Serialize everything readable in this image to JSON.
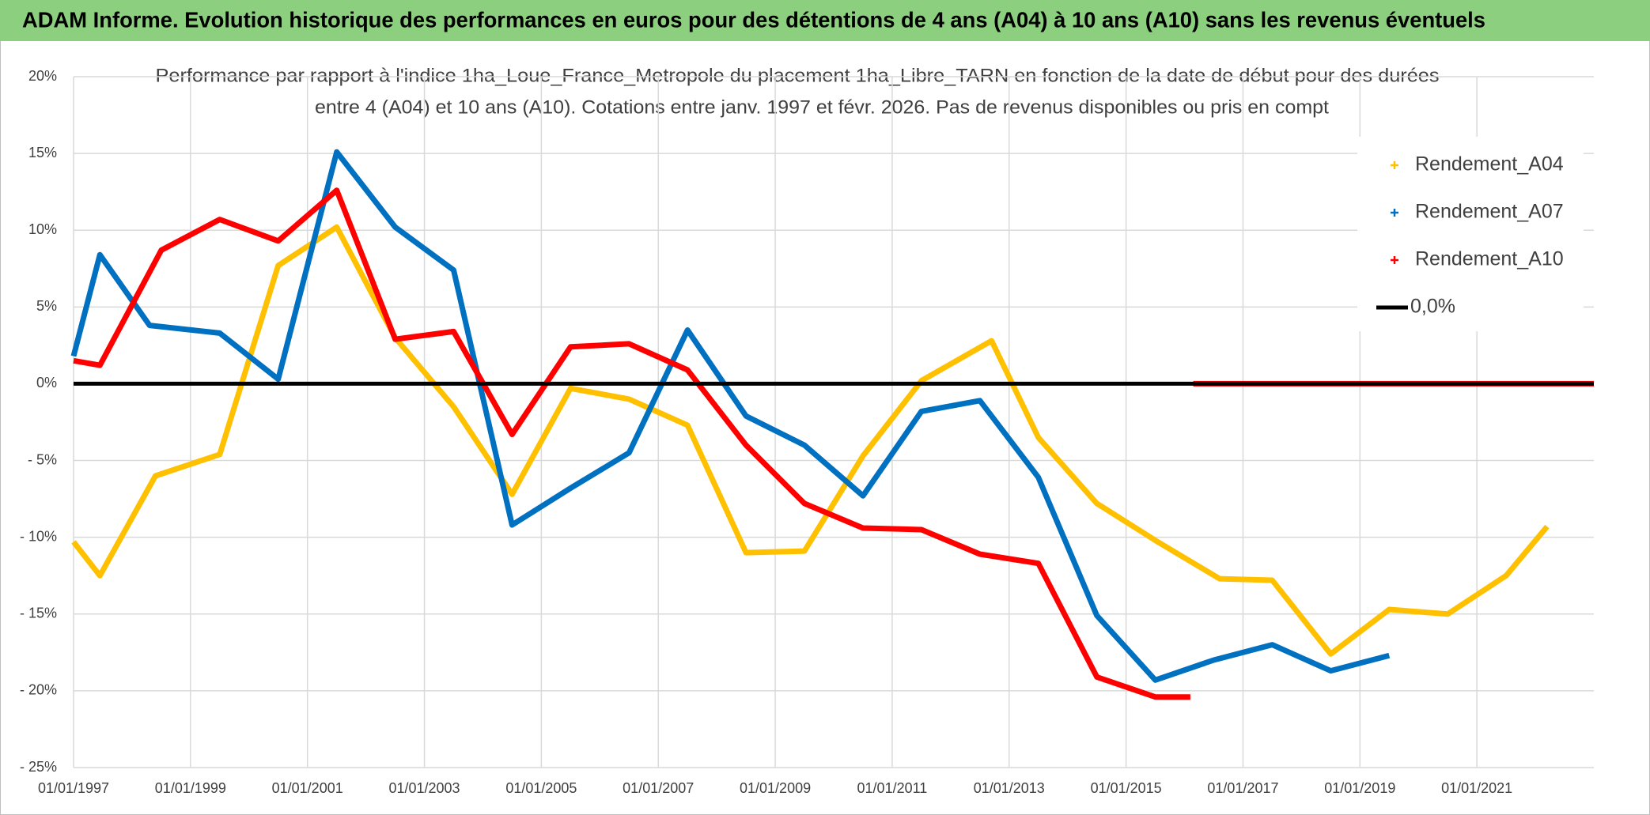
{
  "banner": {
    "title": "ADAM Informe. Evolution historique des performances en euros pour des détentions de 4 ans (A04) à 10 ans (A10) sans les revenus éventuels"
  },
  "chart_data": {
    "type": "line",
    "title": [
      "Performance par rapport à l'indice 1ha_Loue_France_Metropole  du placement 1ha_Libre_TARN en fonction de la date de début pour des durées",
      "entre 4 (A04) et 10 ans (A10). Cotations entre janv. 1997 et févr. 2026. Pas de revenus disponibles ou pris en compt"
    ],
    "xlim": [
      1997,
      2023
    ],
    "xticks": [
      {
        "value": 1997,
        "label": "01/01/1997"
      },
      {
        "value": 1999,
        "label": "01/01/1999"
      },
      {
        "value": 2001,
        "label": "01/01/2001"
      },
      {
        "value": 2003,
        "label": "01/01/2003"
      },
      {
        "value": 2005,
        "label": "01/01/2005"
      },
      {
        "value": 2007,
        "label": "01/01/2007"
      },
      {
        "value": 2009,
        "label": "01/01/2009"
      },
      {
        "value": 2011,
        "label": "01/01/2011"
      },
      {
        "value": 2013,
        "label": "01/01/2013"
      },
      {
        "value": 2015,
        "label": "01/01/2015"
      },
      {
        "value": 2017,
        "label": "01/01/2017"
      },
      {
        "value": 2019,
        "label": "01/01/2019"
      },
      {
        "value": 2021,
        "label": "01/01/2021"
      }
    ],
    "ylim": [
      -25,
      20
    ],
    "yticks": [
      {
        "value": -25,
        "label": "- 25%"
      },
      {
        "value": -20,
        "label": "- 20%"
      },
      {
        "value": -15,
        "label": "- 15%"
      },
      {
        "value": -10,
        "label": "- 10%"
      },
      {
        "value": -5,
        "label": "- 5%"
      },
      {
        "value": 0,
        "label": "0%"
      },
      {
        "value": 5,
        "label": "5%"
      },
      {
        "value": 10,
        "label": "10%"
      },
      {
        "value": 15,
        "label": "15%"
      },
      {
        "value": 20,
        "label": "20%"
      }
    ],
    "grid": true,
    "legend": "right",
    "series": [
      {
        "name": "Rendement_A04",
        "color": "#FFC000",
        "style": "markers",
        "x": [
          1997,
          1997.45,
          1998.4,
          1999.5,
          2000.5,
          2001.5,
          2002.5,
          2003.5,
          2004.5,
          2005.5,
          2006.5,
          2007.5,
          2008.5,
          2009.5,
          2010.5,
          2011.5,
          2012.7,
          2013.5,
          2014.5,
          2015.5,
          2016.6,
          2017.5,
          2018.5,
          2019.5,
          2020.5,
          2021.5,
          2022.2
        ],
        "values": [
          -10.3,
          -12.5,
          -6,
          -4.6,
          7.7,
          10.2,
          3,
          -1.5,
          -7.2,
          -0.3,
          -1,
          -2.7,
          -11,
          -10.9,
          -4.7,
          0.2,
          2.8,
          -3.5,
          -7.8,
          -10.2,
          -12.7,
          -12.8,
          -17.6,
          -14.7,
          -15,
          -12.5,
          -9.3
        ]
      },
      {
        "name": "Rendement_A07",
        "color": "#0070C0",
        "style": "markers",
        "x": [
          1997,
          1997.45,
          1998.3,
          1999.5,
          2000.5,
          2001.5,
          2002.5,
          2003.5,
          2004.5,
          2005.5,
          2006.5,
          2007.5,
          2008.5,
          2009.5,
          2010.5,
          2011.5,
          2012.5,
          2013.5,
          2014.5,
          2015.5,
          2016.5,
          2017.5,
          2018.5,
          2019.5
        ],
        "values": [
          1.8,
          8.4,
          3.8,
          3.3,
          0.3,
          15.1,
          10.2,
          7.4,
          -9.2,
          -6.8,
          -4.5,
          3.5,
          -2.1,
          -4,
          -7.3,
          -1.8,
          -1.1,
          -6.1,
          -15.1,
          -19.3,
          -18,
          -17,
          -18.7,
          -17.7
        ]
      },
      {
        "name": "Rendement_A10",
        "color": "#FF0000",
        "style": "markers",
        "x": [
          1997,
          1997.45,
          1998.5,
          1999.5,
          2000.5,
          2001.5,
          2002.5,
          2003.5,
          2004.5,
          2005.5,
          2006.5,
          2007.5,
          2008.5,
          2009.5,
          2010.5,
          2011.5,
          2012.5,
          2013.5,
          2014.5,
          2015.5,
          2016.1,
          2016.12,
          2016.15,
          2023
        ],
        "values": [
          1.5,
          1.2,
          8.7,
          10.7,
          9.3,
          12.6,
          2.9,
          3.4,
          -3.3,
          2.4,
          2.6,
          0.9,
          -4,
          -7.8,
          -9.4,
          -9.5,
          -11.1,
          -11.7,
          -19.1,
          -20.4,
          -20.4,
          null,
          0,
          0
        ]
      },
      {
        "name": "0,0%",
        "color": "#000000",
        "style": "line",
        "x": [
          1997,
          2023
        ],
        "values": [
          0,
          0
        ]
      }
    ]
  }
}
